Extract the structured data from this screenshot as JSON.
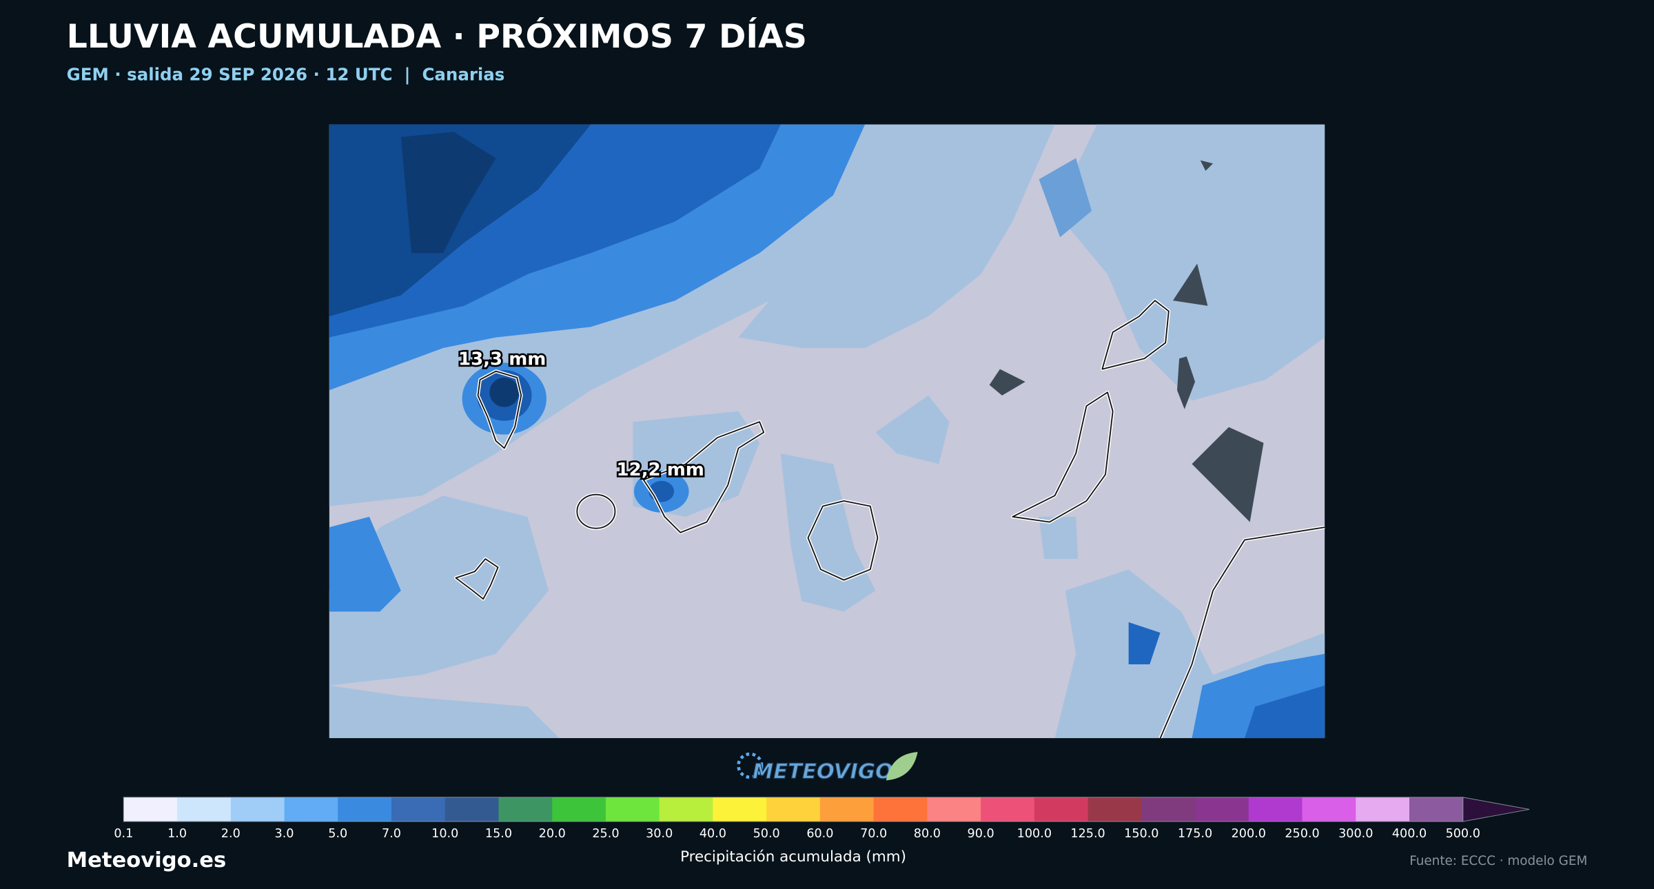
{
  "header": {
    "title": "LLUVIA ACUMULADA · PRÓXIMOS 7 DÍAS",
    "subtitle": "GEM · salida 29 SEP 2026 · 12 UTC  |  Canarias"
  },
  "map": {
    "labels": [
      "13,3 mm",
      "12,2 mm"
    ]
  },
  "logo": {
    "text": "METEOVIGO"
  },
  "colorbar": {
    "ticks": [
      "0.1",
      "1.0",
      "2.0",
      "3.0",
      "5.0",
      "7.0",
      "10.0",
      "15.0",
      "20.0",
      "25.0",
      "30.0",
      "40.0",
      "50.0",
      "60.0",
      "70.0",
      "80.0",
      "90.0",
      "100.0",
      "125.0",
      "150.0",
      "175.0",
      "200.0",
      "250.0",
      "300.0",
      "400.0",
      "500.0"
    ],
    "colors": [
      "#f0f0ff",
      "#cde6fb",
      "#a0cdf8",
      "#62acf5",
      "#3a8ae0",
      "#3a6bb5",
      "#345a92",
      "#3c9563",
      "#3dc43a",
      "#6ee53d",
      "#b8ee3c",
      "#fdf23a",
      "#fdd23a",
      "#fd9f3a",
      "#fd733a",
      "#fc8383",
      "#ee5177",
      "#d23b5f",
      "#993848",
      "#7f3b7e",
      "#8a3590",
      "#b03ad0",
      "#d95ee8",
      "#e5aaf0",
      "#8c5a9f"
    ],
    "extend_color": "#2c0f3a",
    "label": "Precipitación acumulada (mm)"
  },
  "footer": {
    "brand": "Meteovigo.es",
    "source": "Fuente: ECCC · modelo GEM"
  }
}
